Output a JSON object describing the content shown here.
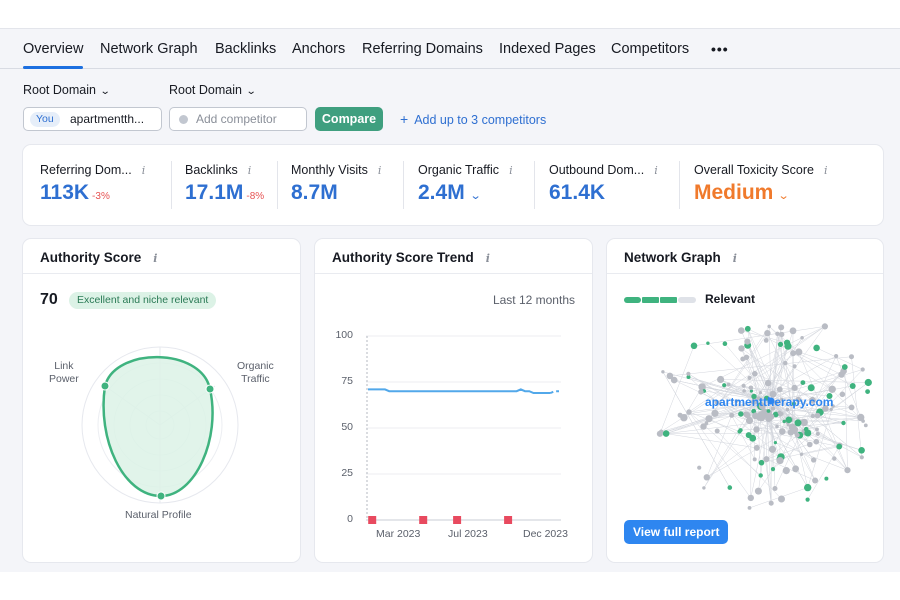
{
  "tabs": [
    {
      "label": "Overview",
      "active": true
    },
    {
      "label": "Network Graph"
    },
    {
      "label": "Backlinks"
    },
    {
      "label": "Anchors"
    },
    {
      "label": "Referring Domains"
    },
    {
      "label": "Indexed Pages"
    },
    {
      "label": "Competitors"
    }
  ],
  "more_label": "•••",
  "controls": {
    "root_domain_1": "Root Domain",
    "root_domain_2": "Root Domain",
    "you_pill": "You",
    "you_domain": "apartmentth...",
    "competitor_placeholder": "Add competitor",
    "compare_label": "Compare",
    "add_link": "Add up to 3 competitors"
  },
  "metrics": [
    {
      "label": "Referring Dom...",
      "value": "113K",
      "delta": "-3%"
    },
    {
      "label": "Backlinks",
      "value": "17.1M",
      "delta": "-8%"
    },
    {
      "label": "Monthly Visits",
      "value": "8.7M"
    },
    {
      "label": "Organic Traffic",
      "value": "2.4M"
    },
    {
      "label": "Outbound Dom...",
      "value": "61.4K"
    },
    {
      "label": "Overall Toxicity Score",
      "value": "Medium"
    }
  ],
  "info_glyph": "i",
  "authority": {
    "title": "Authority Score",
    "score": "70",
    "badge": "Excellent and niche relevant",
    "labels": {
      "link_power": "Link\nPower",
      "organic_traffic": "Organic\nTraffic",
      "natural_profile": "Natural Profile"
    }
  },
  "trend": {
    "title": "Authority Score Trend",
    "range_label": "Last 12 months"
  },
  "chart_data": {
    "type": "line",
    "y_ticks": [
      "100",
      "75",
      "50",
      "25",
      "0"
    ],
    "ylim": [
      0,
      100
    ],
    "x_tick_labels": [
      "Mar 2023",
      "Jul 2023",
      "Dec 2023"
    ],
    "series": [
      {
        "values": [
          71,
          71,
          71,
          71,
          71,
          70,
          70,
          70,
          70,
          70,
          70,
          70,
          70,
          70,
          70,
          70,
          70,
          70,
          70,
          70,
          70,
          70,
          70,
          70,
          70,
          70,
          70,
          70,
          70,
          70,
          70,
          70,
          70,
          70,
          70,
          70,
          71,
          70,
          70,
          69,
          69,
          69,
          69,
          69,
          70,
          70
        ]
      }
    ],
    "markers_x": [
      1,
      13,
      21,
      33
    ]
  },
  "network": {
    "title": "Network Graph",
    "legend": "Relevant",
    "domain": "apartmenttherapy.com",
    "view_label": "View full report"
  },
  "colors": {
    "accent": "#2e6fd1",
    "green": "#3f9f7f",
    "orange": "#f07a2c",
    "red_delta": "#e65353",
    "line": "#52a8ea",
    "marker": "#e84a5f"
  }
}
